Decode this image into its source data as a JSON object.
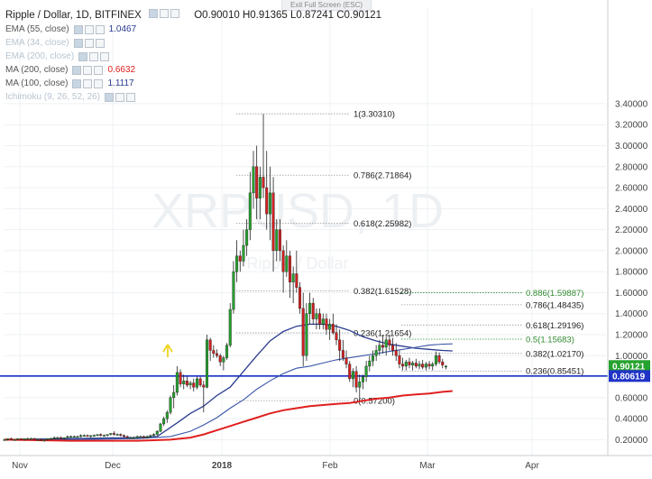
{
  "header": {
    "title": "Ripple / Dollar, 1D, BITFINEX",
    "open": "O0.90010",
    "high": "H0.91365",
    "low": "L0.87241",
    "close": "C0.90121",
    "exit_fullscreen": "Exit Full Screen (ESC)"
  },
  "watermark": {
    "symbol": "XRPUSD, 1D",
    "name": "Ripple / Dollar"
  },
  "indicators": [
    {
      "name": "EMA (55, close)",
      "value": "1.0467",
      "color": "#2a3b8f",
      "faded": false
    },
    {
      "name": "EMA (34, close)",
      "value": "",
      "color": "#b8c4d0",
      "faded": true
    },
    {
      "name": "EMA (200, close)",
      "value": "",
      "color": "#b8c4d0",
      "faded": true
    },
    {
      "name": "MA (200, close)",
      "value": "0.6632",
      "color": "#e02020",
      "faded": false
    },
    {
      "name": "MA (100, close)",
      "value": "1.1117",
      "color": "#2a3b8f",
      "faded": false
    },
    {
      "name": "Ichimoku (9, 26, 52, 26)",
      "value": "",
      "color": "#b8c4d0",
      "faded": true
    }
  ],
  "colors": {
    "up": "#26a22e",
    "down": "#d32020",
    "ma200": "#e02020",
    "ema55": "#2a3b8f",
    "ma100": "#3a55a8",
    "hline": "#1f33c7",
    "fib_line": "#9a9a9a",
    "fib_green": "#2f8a2f"
  },
  "chart_data": {
    "type": "candlestick",
    "title": "Ripple / Dollar, 1D, BITFINEX",
    "xlabel": "",
    "ylabel": "",
    "ylim": [
      0.1,
      3.45
    ],
    "x_ticks": [
      "Nov",
      "Dec",
      "2018",
      "Feb",
      "Mar",
      "Apr"
    ],
    "y_ticks": [
      "0.20000",
      "0.40000",
      "0.60000",
      "0.80000",
      "1.00000",
      "1.20000",
      "1.40000",
      "1.60000",
      "1.80000",
      "2.00000",
      "2.20000",
      "2.40000",
      "2.60000",
      "2.80000",
      "3.00000",
      "3.20000",
      "3.40000"
    ],
    "y_tick_values": [
      0.2,
      0.4,
      0.6,
      0.8,
      1.0,
      1.2,
      1.4,
      1.6,
      1.8,
      2.0,
      2.2,
      2.4,
      2.6,
      2.8,
      3.0,
      3.2,
      3.4
    ],
    "grid": true,
    "price_labels": [
      {
        "value": 0.90121,
        "text": "0.90121",
        "color": "#26a22e"
      },
      {
        "value": 0.80619,
        "text": "0.80619",
        "color": "#1f33c7"
      }
    ],
    "horizontal_line": 0.80619,
    "fib_set_1": [
      {
        "ratio": "1",
        "value": 3.3031,
        "label": "1(3.30310)"
      },
      {
        "ratio": "0.786",
        "value": 2.71864,
        "label": "0.786(2.71864)"
      },
      {
        "ratio": "0.618",
        "value": 2.25982,
        "label": "0.618(2.25982)"
      },
      {
        "ratio": "0.382",
        "value": 1.61528,
        "label": "0.382(1.61528)"
      },
      {
        "ratio": "0.236",
        "value": 1.21654,
        "label": "0.236(1.21654)"
      },
      {
        "ratio": "0",
        "value": 0.572,
        "label": "0(0.57200)"
      }
    ],
    "fib_set_2": [
      {
        "ratio": "0.886",
        "value": 1.59887,
        "label": "0.886(1.59887)",
        "green": true
      },
      {
        "ratio": "0.786",
        "value": 1.48435,
        "label": "0.786(1.48435)",
        "green": false
      },
      {
        "ratio": "0.618",
        "value": 1.29196,
        "label": "0.618(1.29196)",
        "green": false
      },
      {
        "ratio": "0.5",
        "value": 1.15683,
        "label": "0.5(1.15683)",
        "green": true
      },
      {
        "ratio": "0.382",
        "value": 1.0217,
        "label": "0.382(1.02170)",
        "green": false
      },
      {
        "ratio": "0.236",
        "value": 0.85451,
        "label": "0.236(0.85451)",
        "green": false
      }
    ],
    "candles": [
      [
        0.2,
        0.21,
        0.19,
        0.2
      ],
      [
        0.2,
        0.21,
        0.19,
        0.21
      ],
      [
        0.21,
        0.22,
        0.2,
        0.2
      ],
      [
        0.2,
        0.21,
        0.19,
        0.2
      ],
      [
        0.2,
        0.21,
        0.19,
        0.21
      ],
      [
        0.21,
        0.21,
        0.2,
        0.2
      ],
      [
        0.2,
        0.21,
        0.19,
        0.21
      ],
      [
        0.21,
        0.22,
        0.2,
        0.21
      ],
      [
        0.21,
        0.22,
        0.2,
        0.21
      ],
      [
        0.21,
        0.22,
        0.2,
        0.2
      ],
      [
        0.2,
        0.21,
        0.19,
        0.2
      ],
      [
        0.2,
        0.21,
        0.19,
        0.19
      ],
      [
        0.19,
        0.2,
        0.18,
        0.2
      ],
      [
        0.2,
        0.21,
        0.19,
        0.21
      ],
      [
        0.21,
        0.22,
        0.2,
        0.21
      ],
      [
        0.21,
        0.23,
        0.2,
        0.22
      ],
      [
        0.22,
        0.23,
        0.21,
        0.22
      ],
      [
        0.22,
        0.23,
        0.21,
        0.21
      ],
      [
        0.21,
        0.22,
        0.2,
        0.22
      ],
      [
        0.22,
        0.24,
        0.21,
        0.23
      ],
      [
        0.23,
        0.24,
        0.22,
        0.23
      ],
      [
        0.23,
        0.24,
        0.22,
        0.23
      ],
      [
        0.23,
        0.24,
        0.22,
        0.23
      ],
      [
        0.23,
        0.25,
        0.22,
        0.24
      ],
      [
        0.24,
        0.25,
        0.23,
        0.24
      ],
      [
        0.24,
        0.25,
        0.23,
        0.23
      ],
      [
        0.23,
        0.24,
        0.22,
        0.24
      ],
      [
        0.24,
        0.25,
        0.23,
        0.24
      ],
      [
        0.24,
        0.25,
        0.23,
        0.25
      ],
      [
        0.25,
        0.26,
        0.23,
        0.24
      ],
      [
        0.24,
        0.25,
        0.23,
        0.24
      ],
      [
        0.24,
        0.25,
        0.23,
        0.25
      ],
      [
        0.25,
        0.26,
        0.24,
        0.26
      ],
      [
        0.26,
        0.28,
        0.24,
        0.25
      ],
      [
        0.25,
        0.26,
        0.24,
        0.25
      ],
      [
        0.25,
        0.26,
        0.23,
        0.24
      ],
      [
        0.24,
        0.25,
        0.22,
        0.23
      ],
      [
        0.23,
        0.24,
        0.21,
        0.22
      ],
      [
        0.22,
        0.23,
        0.21,
        0.22
      ],
      [
        0.22,
        0.23,
        0.21,
        0.22
      ],
      [
        0.22,
        0.24,
        0.21,
        0.23
      ],
      [
        0.23,
        0.24,
        0.22,
        0.23
      ],
      [
        0.23,
        0.24,
        0.21,
        0.22
      ],
      [
        0.22,
        0.24,
        0.21,
        0.23
      ],
      [
        0.23,
        0.25,
        0.22,
        0.24
      ],
      [
        0.24,
        0.26,
        0.23,
        0.25
      ],
      [
        0.25,
        0.29,
        0.24,
        0.28
      ],
      [
        0.28,
        0.36,
        0.27,
        0.35
      ],
      [
        0.35,
        0.42,
        0.33,
        0.4
      ],
      [
        0.4,
        0.48,
        0.36,
        0.46
      ],
      [
        0.46,
        0.62,
        0.44,
        0.6
      ],
      [
        0.6,
        0.72,
        0.5,
        0.65
      ],
      [
        0.65,
        0.9,
        0.62,
        0.84
      ],
      [
        0.84,
        0.87,
        0.7,
        0.73
      ],
      [
        0.73,
        0.82,
        0.68,
        0.76
      ],
      [
        0.76,
        0.8,
        0.7,
        0.72
      ],
      [
        0.72,
        0.76,
        0.68,
        0.74
      ],
      [
        0.74,
        0.78,
        0.66,
        0.7
      ],
      [
        0.7,
        0.8,
        0.68,
        0.78
      ],
      [
        0.78,
        0.8,
        0.7,
        0.72
      ],
      [
        0.72,
        0.76,
        0.46,
        0.7
      ],
      [
        0.7,
        1.2,
        0.69,
        1.15
      ],
      [
        1.15,
        1.17,
        0.95,
        1.05
      ],
      [
        1.05,
        1.1,
        0.98,
        1.02
      ],
      [
        1.02,
        1.06,
        0.98,
        1.0
      ],
      [
        1.0,
        1.02,
        0.9,
        0.94
      ],
      [
        0.94,
        1.0,
        0.86,
        0.98
      ],
      [
        0.98,
        1.12,
        0.96,
        1.1
      ],
      [
        1.1,
        1.5,
        1.08,
        1.44
      ],
      [
        1.44,
        1.9,
        1.4,
        1.8
      ],
      [
        1.8,
        2.1,
        1.7,
        1.95
      ],
      [
        1.95,
        2.0,
        1.8,
        1.9
      ],
      [
        1.9,
        2.2,
        1.85,
        2.05
      ],
      [
        2.05,
        2.3,
        1.95,
        2.2
      ],
      [
        2.2,
        2.75,
        2.1,
        2.55
      ],
      [
        2.55,
        2.95,
        2.4,
        2.8
      ],
      [
        2.8,
        3.0,
        2.3,
        2.5
      ],
      [
        2.5,
        2.8,
        2.3,
        2.7
      ],
      [
        2.7,
        3.3,
        2.5,
        2.6
      ],
      [
        2.6,
        2.95,
        2.2,
        2.35
      ],
      [
        2.35,
        2.8,
        2.1,
        2.55
      ],
      [
        2.55,
        2.7,
        1.8,
        2.0
      ],
      [
        2.0,
        2.3,
        1.9,
        2.2
      ],
      [
        2.2,
        2.3,
        1.9,
        2.0
      ],
      [
        2.0,
        2.05,
        1.6,
        1.8
      ],
      [
        1.8,
        2.1,
        1.75,
        1.95
      ],
      [
        1.95,
        2.0,
        1.55,
        1.7
      ],
      [
        1.7,
        1.85,
        1.5,
        1.78
      ],
      [
        1.78,
        2.0,
        1.6,
        1.65
      ],
      [
        1.65,
        1.7,
        1.4,
        1.45
      ],
      [
        1.45,
        1.6,
        0.9,
        1.0
      ],
      [
        1.0,
        1.5,
        0.95,
        1.4
      ],
      [
        1.4,
        1.6,
        1.3,
        1.5
      ],
      [
        1.5,
        1.55,
        1.3,
        1.35
      ],
      [
        1.35,
        1.45,
        1.25,
        1.4
      ],
      [
        1.4,
        1.45,
        1.25,
        1.3
      ],
      [
        1.3,
        1.4,
        1.25,
        1.35
      ],
      [
        1.35,
        1.4,
        1.2,
        1.25
      ],
      [
        1.25,
        1.35,
        1.15,
        1.3
      ],
      [
        1.3,
        1.4,
        1.2,
        1.22
      ],
      [
        1.22,
        1.3,
        1.1,
        1.15
      ],
      [
        1.15,
        1.25,
        0.95,
        1.05
      ],
      [
        1.05,
        1.15,
        0.95,
        0.98
      ],
      [
        0.98,
        1.05,
        0.88,
        0.92
      ],
      [
        0.92,
        0.95,
        0.75,
        0.78
      ],
      [
        0.78,
        0.88,
        0.7,
        0.85
      ],
      [
        0.85,
        0.9,
        0.65,
        0.7
      ],
      [
        0.7,
        0.82,
        0.57,
        0.75
      ],
      [
        0.75,
        0.82,
        0.68,
        0.8
      ],
      [
        0.8,
        0.95,
        0.75,
        0.9
      ],
      [
        0.9,
        1.0,
        0.85,
        0.95
      ],
      [
        0.95,
        1.05,
        0.9,
        1.0
      ],
      [
        1.0,
        1.1,
        0.95,
        1.05
      ],
      [
        1.05,
        1.15,
        1.0,
        1.1
      ],
      [
        1.1,
        1.2,
        1.02,
        1.08
      ],
      [
        1.08,
        1.18,
        1.0,
        1.15
      ],
      [
        1.15,
        1.2,
        1.05,
        1.1
      ],
      [
        1.1,
        1.17,
        1.0,
        1.05
      ],
      [
        1.05,
        1.12,
        0.95,
        1.0
      ],
      [
        1.0,
        1.05,
        0.88,
        0.92
      ],
      [
        0.92,
        0.98,
        0.86,
        0.9
      ],
      [
        0.9,
        0.96,
        0.86,
        0.94
      ],
      [
        0.94,
        0.98,
        0.88,
        0.91
      ],
      [
        0.91,
        0.95,
        0.86,
        0.93
      ],
      [
        0.93,
        0.97,
        0.88,
        0.9
      ],
      [
        0.9,
        0.95,
        0.87,
        0.92
      ],
      [
        0.92,
        0.96,
        0.87,
        0.89
      ],
      [
        0.89,
        0.94,
        0.86,
        0.92
      ],
      [
        0.92,
        0.95,
        0.87,
        0.9
      ],
      [
        0.9,
        0.94,
        0.86,
        0.92
      ],
      [
        0.92,
        1.04,
        0.9,
        1.0
      ],
      [
        1.0,
        1.03,
        0.92,
        0.94
      ],
      [
        0.94,
        0.97,
        0.88,
        0.91
      ],
      [
        0.9,
        0.91,
        0.87,
        0.9
      ]
    ],
    "series": [
      {
        "name": "EMA (55, close)",
        "points": [
          [
            0,
            0.2
          ],
          [
            20,
            0.21
          ],
          [
            40,
            0.22
          ],
          [
            46,
            0.23
          ],
          [
            52,
            0.36
          ],
          [
            56,
            0.45
          ],
          [
            60,
            0.52
          ],
          [
            64,
            0.62
          ],
          [
            68,
            0.7
          ],
          [
            72,
            0.85
          ],
          [
            76,
            1.0
          ],
          [
            80,
            1.14
          ],
          [
            84,
            1.23
          ],
          [
            88,
            1.28
          ],
          [
            92,
            1.3
          ],
          [
            96,
            1.3
          ],
          [
            100,
            1.28
          ],
          [
            104,
            1.24
          ],
          [
            108,
            1.18
          ],
          [
            112,
            1.14
          ],
          [
            116,
            1.11
          ],
          [
            120,
            1.09
          ],
          [
            124,
            1.07
          ],
          [
            128,
            1.06
          ],
          [
            132,
            1.05
          ],
          [
            135,
            1.045
          ]
        ]
      },
      {
        "name": "MA (100, close)",
        "points": [
          [
            0,
            0.2
          ],
          [
            20,
            0.2
          ],
          [
            40,
            0.21
          ],
          [
            50,
            0.23
          ],
          [
            56,
            0.28
          ],
          [
            60,
            0.34
          ],
          [
            64,
            0.41
          ],
          [
            68,
            0.5
          ],
          [
            72,
            0.58
          ],
          [
            76,
            0.68
          ],
          [
            80,
            0.76
          ],
          [
            84,
            0.83
          ],
          [
            88,
            0.88
          ],
          [
            92,
            0.9
          ],
          [
            96,
            0.93
          ],
          [
            100,
            0.96
          ],
          [
            104,
            0.98
          ],
          [
            108,
            1.0
          ],
          [
            112,
            1.02
          ],
          [
            116,
            1.04
          ],
          [
            120,
            1.06
          ],
          [
            124,
            1.08
          ],
          [
            128,
            1.1
          ],
          [
            132,
            1.11
          ],
          [
            135,
            1.112
          ]
        ]
      },
      {
        "name": "MA (200, close)",
        "points": [
          [
            0,
            0.2
          ],
          [
            20,
            0.19
          ],
          [
            40,
            0.19
          ],
          [
            50,
            0.2
          ],
          [
            56,
            0.22
          ],
          [
            60,
            0.25
          ],
          [
            64,
            0.29
          ],
          [
            68,
            0.33
          ],
          [
            72,
            0.37
          ],
          [
            76,
            0.41
          ],
          [
            80,
            0.45
          ],
          [
            84,
            0.48
          ],
          [
            88,
            0.5
          ],
          [
            92,
            0.52
          ],
          [
            96,
            0.53
          ],
          [
            100,
            0.54
          ],
          [
            104,
            0.55
          ],
          [
            108,
            0.57
          ],
          [
            112,
            0.59
          ],
          [
            116,
            0.6
          ],
          [
            120,
            0.62
          ],
          [
            124,
            0.63
          ],
          [
            128,
            0.64
          ],
          [
            132,
            0.655
          ],
          [
            135,
            0.663
          ]
        ]
      }
    ]
  }
}
